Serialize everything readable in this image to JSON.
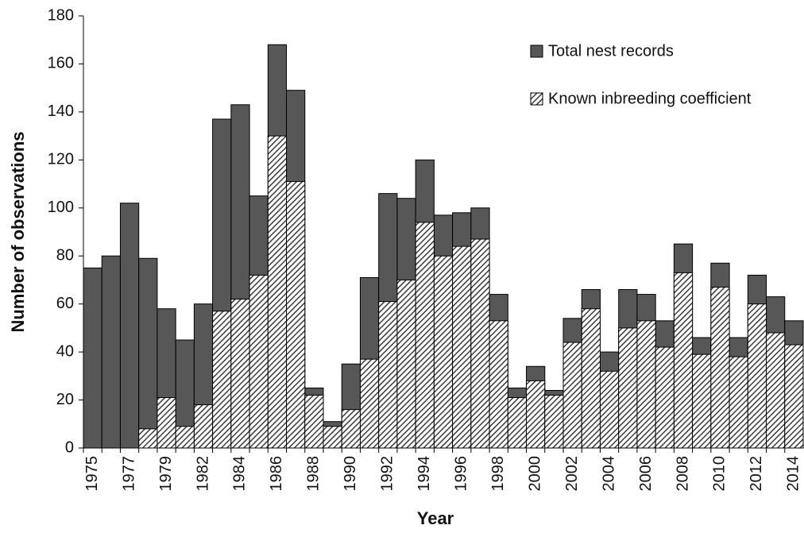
{
  "chart_data": {
    "type": "overlay_bar",
    "xlabel": "Year",
    "ylabel": "Number of observations",
    "categories": [
      "1975",
      null,
      "1977",
      null,
      "1979",
      null,
      "1982",
      null,
      "1984",
      null,
      "1986",
      null,
      "1988",
      null,
      "1990",
      null,
      "1992",
      null,
      "1994",
      null,
      "1996",
      null,
      "1998",
      null,
      "2000",
      null,
      "2002",
      null,
      "2004",
      null,
      "2006",
      null,
      "2008",
      null,
      "2010",
      null,
      "2012",
      null,
      "2014"
    ],
    "series": [
      {
        "name": "Total nest records",
        "color": "#575757",
        "hatch": false,
        "values": [
          75,
          80,
          102,
          79,
          58,
          45,
          60,
          137,
          143,
          105,
          168,
          149,
          25,
          11,
          35,
          71,
          106,
          104,
          120,
          97,
          98,
          100,
          64,
          25,
          34,
          24,
          54,
          66,
          40,
          66,
          64,
          53,
          85,
          46,
          77,
          46,
          72,
          63,
          53
        ]
      },
      {
        "name": "Known inbreeding coefficient",
        "color": "#3a3a3a",
        "hatch": true,
        "values": [
          null,
          null,
          null,
          8,
          21,
          9,
          18,
          57,
          62,
          72,
          130,
          111,
          22,
          9,
          16,
          37,
          61,
          70,
          94,
          80,
          84,
          87,
          53,
          21,
          28,
          22,
          44,
          58,
          32,
          50,
          53,
          42,
          73,
          39,
          67,
          38,
          60,
          48,
          43
        ]
      }
    ],
    "ylim": [
      0,
      180
    ],
    "yticks": [
      0,
      20,
      40,
      60,
      80,
      100,
      120,
      140,
      160,
      180
    ],
    "legend": "upper right"
  }
}
